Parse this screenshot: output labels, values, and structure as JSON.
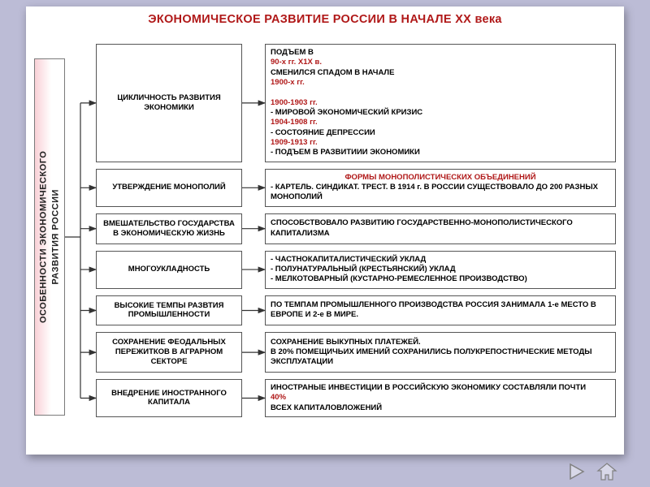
{
  "title": "ЭКОНОМИЧЕСКОЕ РАЗВИТИЕ РОССИИ В НАЧАЛЕ ХХ века",
  "side_label_line1": "ОСОБЕННОСТИ ЭКОНОМИЧЕСКОГО",
  "side_label_line2": "РАЗВИТИЯ РОССИИ",
  "colors": {
    "page_bg": "#bcbcd6",
    "slide_bg": "#ffffff",
    "title_color": "#b01818",
    "accent_red": "#b01818",
    "box_border": "#555555",
    "side_gradient_from": "#f9d0d6",
    "side_gradient_to": "#ffffff",
    "connector_color": "#333333",
    "nav_stroke": "#808080",
    "nav_fill": "#d8d8e8"
  },
  "rows": [
    {
      "left": "ЦИКЛИЧНОСТЬ РАЗВИТИЯ ЭКОНОМИКИ",
      "right_html": "ПОДЪЕМ В <span class='red'>90-х гг. Х1Х в.</span>  СМЕНИЛСЯ СПАДОМ В НАЧАЛЕ <span class='red'>1900-х  гг.</span><br><span class='red'>1900-1903 гг.</span> - МИРОВОЙ ЭКОНОМИЧЕСКИЙ КРИЗИС<br><span class='red'>1904-1908 гг.</span> - СОСТОЯНИЕ ДЕПРЕССИИ<br><span class='red'>1909-1913 гг.</span> - ПОДЪЕМ В РАЗВИТИИИ ЭКОНОМИКИ"
    },
    {
      "left": "УТВЕРЖДЕНИЕ МОНОПОЛИЙ",
      "right_html": "<div class='center red'>ФОРМЫ МОНОПОЛИСТИЧЕСКИХ ОБЪЕДИНЕНИЙ</div>- КАРТЕЛЬ. СИНДИКАТ. ТРЕСТ. В 1914 г. В РОССИИ СУЩЕСТВОВАЛО ДО 200 РАЗНЫХ МОНОПОЛИЙ"
    },
    {
      "left": "ВМЕШАТЕЛЬСТВО ГОСУДАРСТВА В ЭКОНОМИЧЕСКУЮ ЖИЗНЬ",
      "right_html": "СПОСОБСТВОВАЛО  РАЗВИТИЮ  ГОСУДАРСТВЕННО-МОНОПОЛИСТИЧЕСКОГО КАПИТАЛИЗМА"
    },
    {
      "left": "МНОГОУКЛАДНОСТЬ",
      "right_html": "- ЧАСТНОКАПИТАЛИСТИЧЕСКИЙ УКЛАД<br>- ПОЛУНАТУРАЛЬНЫЙ (КРЕСТЬЯНСКИЙ) УКЛАД<br>- МЕЛКОТОВАРНЫЙ (КУСТАРНО-РЕМЕСЛЕННОЕ ПРОИЗВОДСТВО)"
    },
    {
      "left": "ВЫСОКИЕ ТЕМПЫ РАЗВТИЯ ПРОМЫШЛЕННОСТИ",
      "right_html": "ПО  ТЕМПАМ  ПРОМЫШЛЕННОГО  ПРОИЗВОДСТВА РОССИЯ  ЗАНИМАЛА  1-е  МЕСТО  В  ЕВРОПЕ  И  2-е  В МИРЕ."
    },
    {
      "left": "СОХРАНЕНИЕ ФЕОДАЛЬНЫХ ПЕРЕЖИТКОВ В АГРАРНОМ СЕКТОРЕ",
      "right_html": "СОХРАНЕНИЕ ВЫКУПНЫХ ПЛАТЕЖЕЙ.<br>В 20% ПОМЕЩИЧЬИХ ИМЕНИЙ СОХРАНИЛИСЬ ПОЛУКРЕПОСТНИЧЕСКИЕ МЕТОДЫ ЭКСПЛУАТАЦИИ"
    },
    {
      "left": "ВНЕДРЕНИЕ ИНОСТРАННОГО КАПИТАЛА",
      "right_html": "ИНОСТРАНЫЕ ИНВЕСТИЦИИ В РОССИЙСКУЮ ЭКОНОМИКУ СОСТАВЛЯЛИ ПОЧТИ <span class='red'>40%</span> ВСЕХ КАПИТАЛОВЛОЖЕНИЙ"
    }
  ],
  "layout": {
    "slide_w": 736,
    "slide_h": 552,
    "left_box_w": 180,
    "gap": 28,
    "font_size_small": 9.5,
    "font_size_title": 14.5
  }
}
